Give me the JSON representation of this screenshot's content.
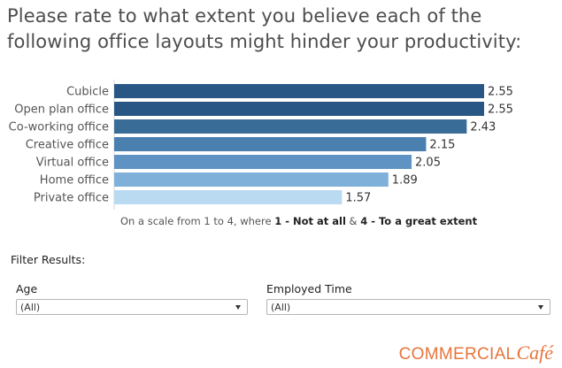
{
  "title": "Please rate to what extent you believe each of the following office layouts might hinder your productivity:",
  "chart_data": {
    "type": "bar",
    "orientation": "horizontal",
    "categories": [
      "Cubicle",
      "Open plan office",
      "Co-working office",
      "Creative office",
      "Virtual office",
      "Home office",
      "Private office"
    ],
    "values": [
      2.55,
      2.55,
      2.43,
      2.15,
      2.05,
      1.89,
      1.57
    ],
    "value_labels": [
      "2.55",
      "2.55",
      "2.43",
      "2.15",
      "2.05",
      "1.89",
      "1.57"
    ],
    "colors": [
      "#285785",
      "#285785",
      "#3a6c98",
      "#4a80b0",
      "#5e93c3",
      "#7fb0d9",
      "#b9daf0"
    ],
    "xlim": [
      0,
      2.55
    ],
    "grid": false,
    "legend": "none"
  },
  "caption": {
    "prefix": "On a scale from 1 to 4, where ",
    "bold1": "1 - Not at all",
    "mid": " & ",
    "bold2": "4 - To a great extent"
  },
  "filters": {
    "title": "Filter Results:",
    "age": {
      "label": "Age",
      "value": "(All)"
    },
    "employed_time": {
      "label": "Employed Time",
      "value": "(All)"
    }
  },
  "logo": {
    "main": "COMMERCIAL",
    "script": "Café"
  }
}
